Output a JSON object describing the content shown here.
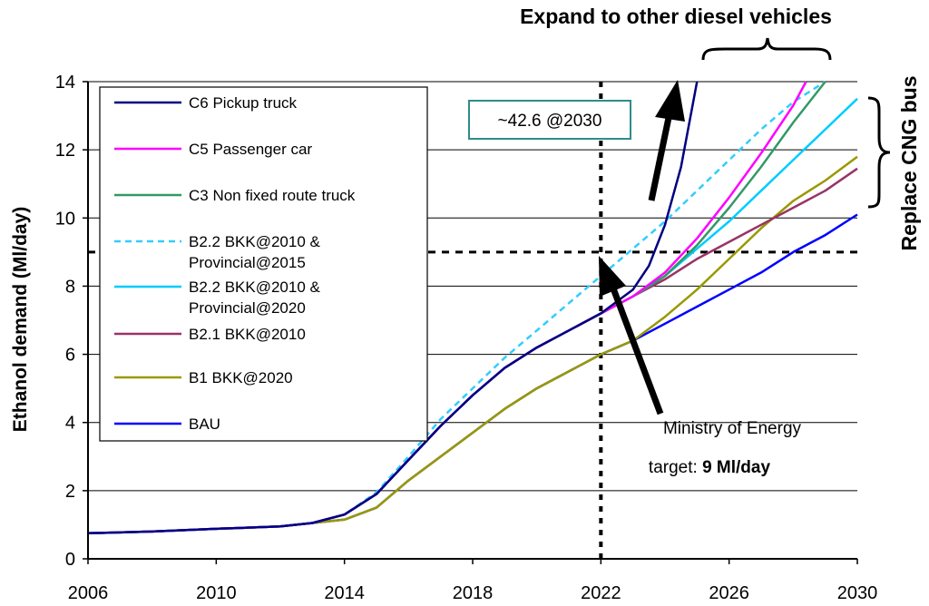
{
  "chart_data": {
    "type": "line",
    "title": "",
    "xlabel": "",
    "ylabel": "Ethanol demand (Ml/day)",
    "xlim": [
      2006,
      2030
    ],
    "ylim": [
      0,
      14
    ],
    "x_ticks": [
      "2006",
      "2010",
      "2014",
      "2018",
      "2022",
      "2026",
      "2030"
    ],
    "y_ticks": [
      "0",
      "2",
      "4",
      "6",
      "8",
      "10",
      "12",
      "14"
    ],
    "grid": "horizontal",
    "legend_position": "top-left",
    "series": [
      {
        "name": "C6 Pickup truck",
        "color": "#000080",
        "dash": "solid",
        "points": [
          [
            2006,
            0.75
          ],
          [
            2008,
            0.8
          ],
          [
            2010,
            0.88
          ],
          [
            2012,
            0.95
          ],
          [
            2013,
            1.05
          ],
          [
            2014,
            1.3
          ],
          [
            2015,
            1.9
          ],
          [
            2016,
            2.9
          ],
          [
            2017,
            3.9
          ],
          [
            2018,
            4.8
          ],
          [
            2019,
            5.6
          ],
          [
            2020,
            6.2
          ],
          [
            2021,
            6.7
          ],
          [
            2022,
            7.2
          ],
          [
            2023,
            7.9
          ],
          [
            2023.5,
            8.6
          ],
          [
            2024,
            9.8
          ],
          [
            2024.5,
            11.5
          ],
          [
            2025,
            14
          ]
        ]
      },
      {
        "name": "C5 Passenger car",
        "color": "#ff00ff",
        "dash": "solid",
        "points": [
          [
            2006,
            0.75
          ],
          [
            2008,
            0.8
          ],
          [
            2010,
            0.88
          ],
          [
            2012,
            0.95
          ],
          [
            2013,
            1.05
          ],
          [
            2014,
            1.3
          ],
          [
            2015,
            1.9
          ],
          [
            2016,
            2.9
          ],
          [
            2017,
            3.9
          ],
          [
            2018,
            4.8
          ],
          [
            2019,
            5.6
          ],
          [
            2020,
            6.2
          ],
          [
            2021,
            6.7
          ],
          [
            2022,
            7.2
          ],
          [
            2023,
            7.7
          ],
          [
            2024,
            8.4
          ],
          [
            2025,
            9.4
          ],
          [
            2026,
            10.6
          ],
          [
            2027,
            11.9
          ],
          [
            2028,
            13.3
          ],
          [
            2028.4,
            14
          ]
        ]
      },
      {
        "name": "C3 Non fixed route truck",
        "color": "#339966",
        "dash": "solid",
        "points": [
          [
            2006,
            0.75
          ],
          [
            2008,
            0.8
          ],
          [
            2010,
            0.88
          ],
          [
            2012,
            0.95
          ],
          [
            2013,
            1.05
          ],
          [
            2014,
            1.3
          ],
          [
            2015,
            1.9
          ],
          [
            2016,
            2.9
          ],
          [
            2017,
            3.9
          ],
          [
            2018,
            4.8
          ],
          [
            2019,
            5.6
          ],
          [
            2020,
            6.2
          ],
          [
            2021,
            6.7
          ],
          [
            2022,
            7.2
          ],
          [
            2023,
            7.7
          ],
          [
            2024,
            8.3
          ],
          [
            2025,
            9.2
          ],
          [
            2026,
            10.3
          ],
          [
            2027,
            11.5
          ],
          [
            2028,
            12.8
          ],
          [
            2029,
            14
          ]
        ]
      },
      {
        "name": "B2.2 BKK@2010 & Provincial@2015",
        "color": "#33ccff",
        "dash": "dashed",
        "points": [
          [
            2006,
            0.75
          ],
          [
            2008,
            0.8
          ],
          [
            2010,
            0.88
          ],
          [
            2012,
            0.95
          ],
          [
            2013,
            1.05
          ],
          [
            2014,
            1.3
          ],
          [
            2015,
            1.95
          ],
          [
            2016,
            3.0
          ],
          [
            2017,
            4.1
          ],
          [
            2018,
            5.0
          ],
          [
            2019,
            5.9
          ],
          [
            2020,
            6.7
          ],
          [
            2021,
            7.5
          ],
          [
            2022,
            8.3
          ],
          [
            2023,
            9.1
          ],
          [
            2024,
            9.9
          ],
          [
            2025,
            10.8
          ],
          [
            2026,
            11.7
          ],
          [
            2027,
            12.6
          ],
          [
            2028,
            13.4
          ],
          [
            2029,
            14
          ]
        ]
      },
      {
        "name": "B2.2 BKK@2010 & Provincial@2020",
        "color": "#00ccff",
        "dash": "solid",
        "points": [
          [
            2006,
            0.75
          ],
          [
            2008,
            0.8
          ],
          [
            2010,
            0.88
          ],
          [
            2012,
            0.95
          ],
          [
            2013,
            1.05
          ],
          [
            2014,
            1.3
          ],
          [
            2015,
            1.9
          ],
          [
            2016,
            2.9
          ],
          [
            2017,
            3.9
          ],
          [
            2018,
            4.8
          ],
          [
            2019,
            5.6
          ],
          [
            2020,
            6.2
          ],
          [
            2021,
            6.7
          ],
          [
            2022,
            7.2
          ],
          [
            2023,
            7.7
          ],
          [
            2024,
            8.3
          ],
          [
            2025,
            9.1
          ],
          [
            2026,
            9.9
          ],
          [
            2027,
            10.8
          ],
          [
            2028,
            11.7
          ],
          [
            2029,
            12.6
          ],
          [
            2030,
            13.5
          ]
        ]
      },
      {
        "name": "B2.1 BKK@2010",
        "color": "#993366",
        "dash": "solid",
        "points": [
          [
            2006,
            0.75
          ],
          [
            2008,
            0.8
          ],
          [
            2010,
            0.88
          ],
          [
            2012,
            0.95
          ],
          [
            2013,
            1.05
          ],
          [
            2014,
            1.3
          ],
          [
            2015,
            1.9
          ],
          [
            2016,
            2.9
          ],
          [
            2017,
            3.9
          ],
          [
            2018,
            4.8
          ],
          [
            2019,
            5.6
          ],
          [
            2020,
            6.2
          ],
          [
            2021,
            6.7
          ],
          [
            2022,
            7.2
          ],
          [
            2023,
            7.7
          ],
          [
            2024,
            8.2
          ],
          [
            2025,
            8.8
          ],
          [
            2026,
            9.3
          ],
          [
            2027,
            9.8
          ],
          [
            2028,
            10.3
          ],
          [
            2029,
            10.8
          ],
          [
            2030,
            11.45
          ]
        ]
      },
      {
        "name": "B1 BKK@2020",
        "color": "#999900",
        "dash": "solid",
        "points": [
          [
            2006,
            0.75
          ],
          [
            2008,
            0.8
          ],
          [
            2010,
            0.88
          ],
          [
            2012,
            0.95
          ],
          [
            2013,
            1.05
          ],
          [
            2014,
            1.15
          ],
          [
            2015,
            1.5
          ],
          [
            2016,
            2.3
          ],
          [
            2017,
            3.0
          ],
          [
            2018,
            3.7
          ],
          [
            2019,
            4.4
          ],
          [
            2020,
            5.0
          ],
          [
            2021,
            5.5
          ],
          [
            2022,
            6.0
          ],
          [
            2023,
            6.4
          ],
          [
            2024,
            7.1
          ],
          [
            2025,
            7.9
          ],
          [
            2026,
            8.8
          ],
          [
            2027,
            9.7
          ],
          [
            2028,
            10.5
          ],
          [
            2029,
            11.1
          ],
          [
            2030,
            11.8
          ]
        ]
      },
      {
        "name": "BAU",
        "color": "#0000ff",
        "dash": "solid",
        "points": [
          [
            2006,
            0.75
          ],
          [
            2008,
            0.8
          ],
          [
            2010,
            0.88
          ],
          [
            2012,
            0.95
          ],
          [
            2013,
            1.05
          ],
          [
            2014,
            1.15
          ],
          [
            2015,
            1.5
          ],
          [
            2016,
            2.3
          ],
          [
            2017,
            3.0
          ],
          [
            2018,
            3.7
          ],
          [
            2019,
            4.4
          ],
          [
            2020,
            5.0
          ],
          [
            2021,
            5.5
          ],
          [
            2022,
            6.0
          ],
          [
            2023,
            6.4
          ],
          [
            2024,
            6.9
          ],
          [
            2025,
            7.4
          ],
          [
            2026,
            7.9
          ],
          [
            2027,
            8.4
          ],
          [
            2028,
            9.0
          ],
          [
            2029,
            9.5
          ],
          [
            2030,
            10.1
          ]
        ]
      }
    ],
    "reference_lines": [
      {
        "axis": "x",
        "value": 2022,
        "label": ""
      },
      {
        "axis": "y",
        "value": 9,
        "label": ""
      }
    ],
    "annotations": {
      "box_label": "~42.6 @2030",
      "ministry_line1": "Ministry of Energy",
      "ministry_line2_prefix": "target: ",
      "ministry_line2_bold": "9 Ml/day",
      "top_label": "Expand to other diesel vehicles",
      "right_label": "Replace CNG bus"
    }
  }
}
